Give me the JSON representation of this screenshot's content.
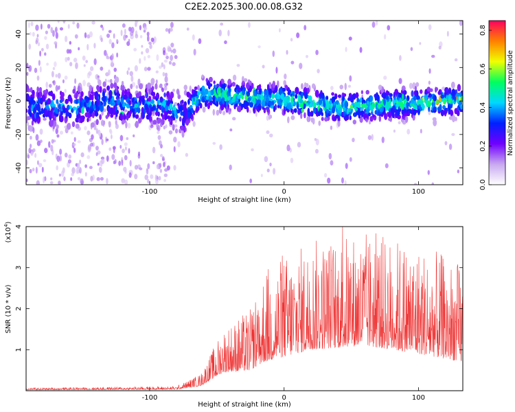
{
  "chart_data": [
    {
      "type": "heatmap",
      "title": "C2E2.2025.300.00.08.G32",
      "xlabel": "Height of straight line (km)",
      "ylabel": "Frequency (Hz)",
      "xlim": [
        -192,
        133
      ],
      "ylim": [
        -50,
        48
      ],
      "xticks": [
        -100,
        0,
        100
      ],
      "xtick_labels": [
        "-100",
        "0",
        "100"
      ],
      "yticks": [
        -40,
        -20,
        0,
        20,
        40
      ],
      "ytick_labels": [
        "-40",
        "-20",
        "0",
        "20",
        "40"
      ],
      "colorbar": {
        "label": "Normalized spectral amplitude",
        "range": [
          0.0,
          0.85
        ],
        "ticks": [
          0.0,
          0.2,
          0.4,
          0.6,
          0.8
        ],
        "tick_labels": [
          "0.0",
          "0.2",
          "0.4",
          "0.6",
          "0.8"
        ],
        "colors": [
          "#ffffff",
          "#c8a8f0",
          "#7000ff",
          "#0020ff",
          "#00d8ff",
          "#00ff60",
          "#f0ff00",
          "#ff8000",
          "#ff0060"
        ]
      },
      "band": {
        "center_hz": [
          {
            "x": -190,
            "f": -3
          },
          {
            "x": -150,
            "f": -4
          },
          {
            "x": -130,
            "f": 0
          },
          {
            "x": -110,
            "f": -3
          },
          {
            "x": -90,
            "f": -2
          },
          {
            "x": -75,
            "f": -8
          },
          {
            "x": -60,
            "f": 5
          },
          {
            "x": -30,
            "f": 2
          },
          {
            "x": 0,
            "f": 1
          },
          {
            "x": 40,
            "f": -4
          },
          {
            "x": 80,
            "f": -2
          },
          {
            "x": 133,
            "f": 0
          }
        ],
        "half_width_hz": 10
      }
    },
    {
      "type": "line",
      "xlabel": "Height of straight line (km)",
      "ylabel": "SNR (10 * v/v)",
      "yscale_label": "(x10",
      "yscale_exp": "4",
      "xlim": [
        -192,
        133
      ],
      "ylim": [
        0,
        4
      ],
      "xticks": [
        -100,
        0,
        100
      ],
      "xtick_labels": [
        "-100",
        "0",
        "100"
      ],
      "yticks": [
        1,
        2,
        3,
        4
      ],
      "ytick_labels": [
        "1",
        "2",
        "3",
        "4"
      ],
      "color": "#ee3333",
      "envelope": [
        {
          "x": -192,
          "base": 0.02,
          "amp": 0.05
        },
        {
          "x": -80,
          "base": 0.03,
          "amp": 0.08
        },
        {
          "x": -62,
          "base": 0.12,
          "amp": 0.3
        },
        {
          "x": -45,
          "base": 0.45,
          "amp": 1.1
        },
        {
          "x": -25,
          "base": 0.5,
          "amp": 1.5
        },
        {
          "x": -15,
          "base": 0.7,
          "amp": 2.3
        },
        {
          "x": 20,
          "base": 1.0,
          "amp": 2.7
        },
        {
          "x": 60,
          "base": 1.1,
          "amp": 2.8
        },
        {
          "x": 100,
          "base": 0.9,
          "amp": 2.7
        },
        {
          "x": 133,
          "base": 0.7,
          "amp": 2.4
        }
      ]
    }
  ]
}
